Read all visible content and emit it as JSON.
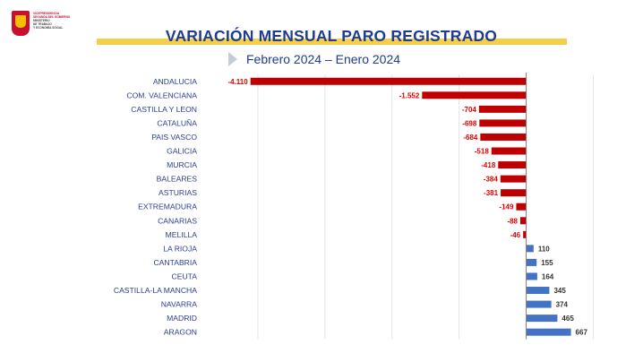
{
  "header": {
    "title": "VARIACIÓN MENSUAL PARO REGISTRADO",
    "subtitle": "Febrero 2024 – Enero 2024",
    "logo_lines": [
      "VICEPRESIDENCIA",
      "SEGUNDA DEL GOBIERNO",
      "MINISTERIO",
      "DE TRABAJO",
      "Y ECONOMÍA SOCIAL"
    ]
  },
  "colors": {
    "negative": "#c00000",
    "positive": "#4472c4",
    "title": "#1f3d8f",
    "banner": "#f5cf4a"
  },
  "chart_data": {
    "type": "bar",
    "orientation": "horizontal",
    "categories": [
      "ANDALUCIA",
      "COM. VALENCIANA",
      "CASTILLA Y LEON",
      "CATALUÑA",
      "PAIS VASCO",
      "GALICIA",
      "MURCIA",
      "BALEARES",
      "ASTURIAS",
      "EXTREMADURA",
      "CANARIAS",
      "MELILLA",
      "LA RIOJA",
      "CANTABRIA",
      "CEUTA",
      "CASTILLA-LA MANCHA",
      "NAVARRA",
      "MADRID",
      "ARAGON"
    ],
    "values": [
      -4110,
      -1552,
      -704,
      -698,
      -684,
      -518,
      -418,
      -384,
      -381,
      -149,
      -88,
      -46,
      110,
      155,
      164,
      345,
      374,
      465,
      667
    ],
    "value_labels": [
      "-4.110",
      "-1.552",
      "-704",
      "-698",
      "-684",
      "-518",
      "-418",
      "-384",
      "-381",
      "-149",
      "-88",
      "-46",
      "110",
      "155",
      "164",
      "345",
      "374",
      "465",
      "667"
    ],
    "xlim": [
      -4800,
      1100
    ],
    "grid": true
  }
}
